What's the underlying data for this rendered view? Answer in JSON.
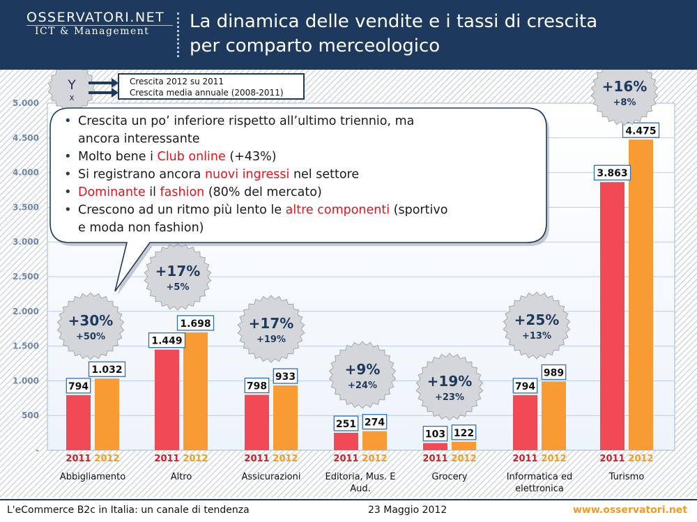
{
  "logo": {
    "top": "OSSERVATORI.NET",
    "bottom": "ICT & Management"
  },
  "title": {
    "line1": "La dinamica delle vendite e i tassi di crescita",
    "line2": "per comparto merceologico"
  },
  "footer": {
    "left": "L'eCommerce B2c in Italia: un canale di tendenza",
    "center": "23 Maggio 2012",
    "right": "www.osservatori.net"
  },
  "colors": {
    "header": "#1d3a5e",
    "bar2011": "#f04a54",
    "bar2012": "#f79b32",
    "year2011": "#cc1f2a",
    "year2012": "#f39c1e",
    "highlight": "#e3141c"
  },
  "chart_data": {
    "type": "bar",
    "title": "La dinamica delle vendite e i tassi di crescita per comparto merceologico",
    "categories": [
      "Abbigliamento",
      "Altro",
      "Assicurazioni",
      "Editoria, Mus. E Aud.",
      "Grocery",
      "Informatica ed elettronica",
      "Turismo"
    ],
    "series": [
      {
        "name": "2011",
        "values": [
          794,
          1449,
          798,
          251,
          103,
          794,
          3863
        ],
        "labels": [
          "794",
          "1.449",
          "798",
          "251",
          "103",
          "794",
          "3.863"
        ]
      },
      {
        "name": "2012",
        "values": [
          1032,
          1698,
          933,
          274,
          122,
          989,
          4475
        ],
        "labels": [
          "1.032",
          "1.698",
          "933",
          "274",
          "122",
          "989",
          "4.475"
        ]
      }
    ],
    "growth": [
      {
        "y": "+30%",
        "x": "+50%"
      },
      {
        "y": "+17%",
        "x": "+5%"
      },
      {
        "y": "+17%",
        "x": "+19%"
      },
      {
        "y": "+9%",
        "x": "+24%"
      },
      {
        "y": "+19%",
        "x": "+23%"
      },
      {
        "y": "+25%",
        "x": "+13%"
      },
      {
        "y": "+16%",
        "x": "+8%"
      }
    ],
    "ylim": [
      0,
      5000
    ],
    "yticks": [
      0,
      500,
      1000,
      1500,
      2000,
      2500,
      3000,
      3500,
      4000,
      4500,
      5000
    ],
    "ytick_labels": [
      "-",
      "500",
      "1.000",
      "1.500",
      "2.000",
      "2.500",
      "3.000",
      "3.500",
      "4.000",
      "4.500",
      "5.000"
    ],
    "grid": true,
    "legend": {
      "y_symbol": "Y",
      "x_symbol": "x",
      "y_text": "Crescita 2012 su 2011",
      "x_text": "Crescita media annuale (2008-2011)"
    },
    "callout": [
      [
        {
          "t": "Crescita un po’ inferiore rispetto all’ultimo triennio, ma"
        }
      ],
      [
        {
          "t": "ancora interessante",
          "indent": true
        }
      ],
      [
        {
          "t": "Molto bene i "
        },
        {
          "t": "Club online",
          "red": true
        },
        {
          "t": " (+43%)"
        }
      ],
      [
        {
          "t": "Si registrano ancora "
        },
        {
          "t": "nuovi ingressi",
          "red": true
        },
        {
          "t": " nel settore"
        }
      ],
      [
        {
          "t": "Dominante",
          "red": true
        },
        {
          "t": " il "
        },
        {
          "t": "fashion",
          "red": true
        },
        {
          "t": " (80% del mercato)"
        }
      ],
      [
        {
          "t": "Crescono ad un ritmo più lento le "
        },
        {
          "t": "altre componenti",
          "red": true
        },
        {
          "t": " (sportivo"
        }
      ],
      [
        {
          "t": "e moda non fashion)",
          "indent": true
        }
      ]
    ]
  }
}
